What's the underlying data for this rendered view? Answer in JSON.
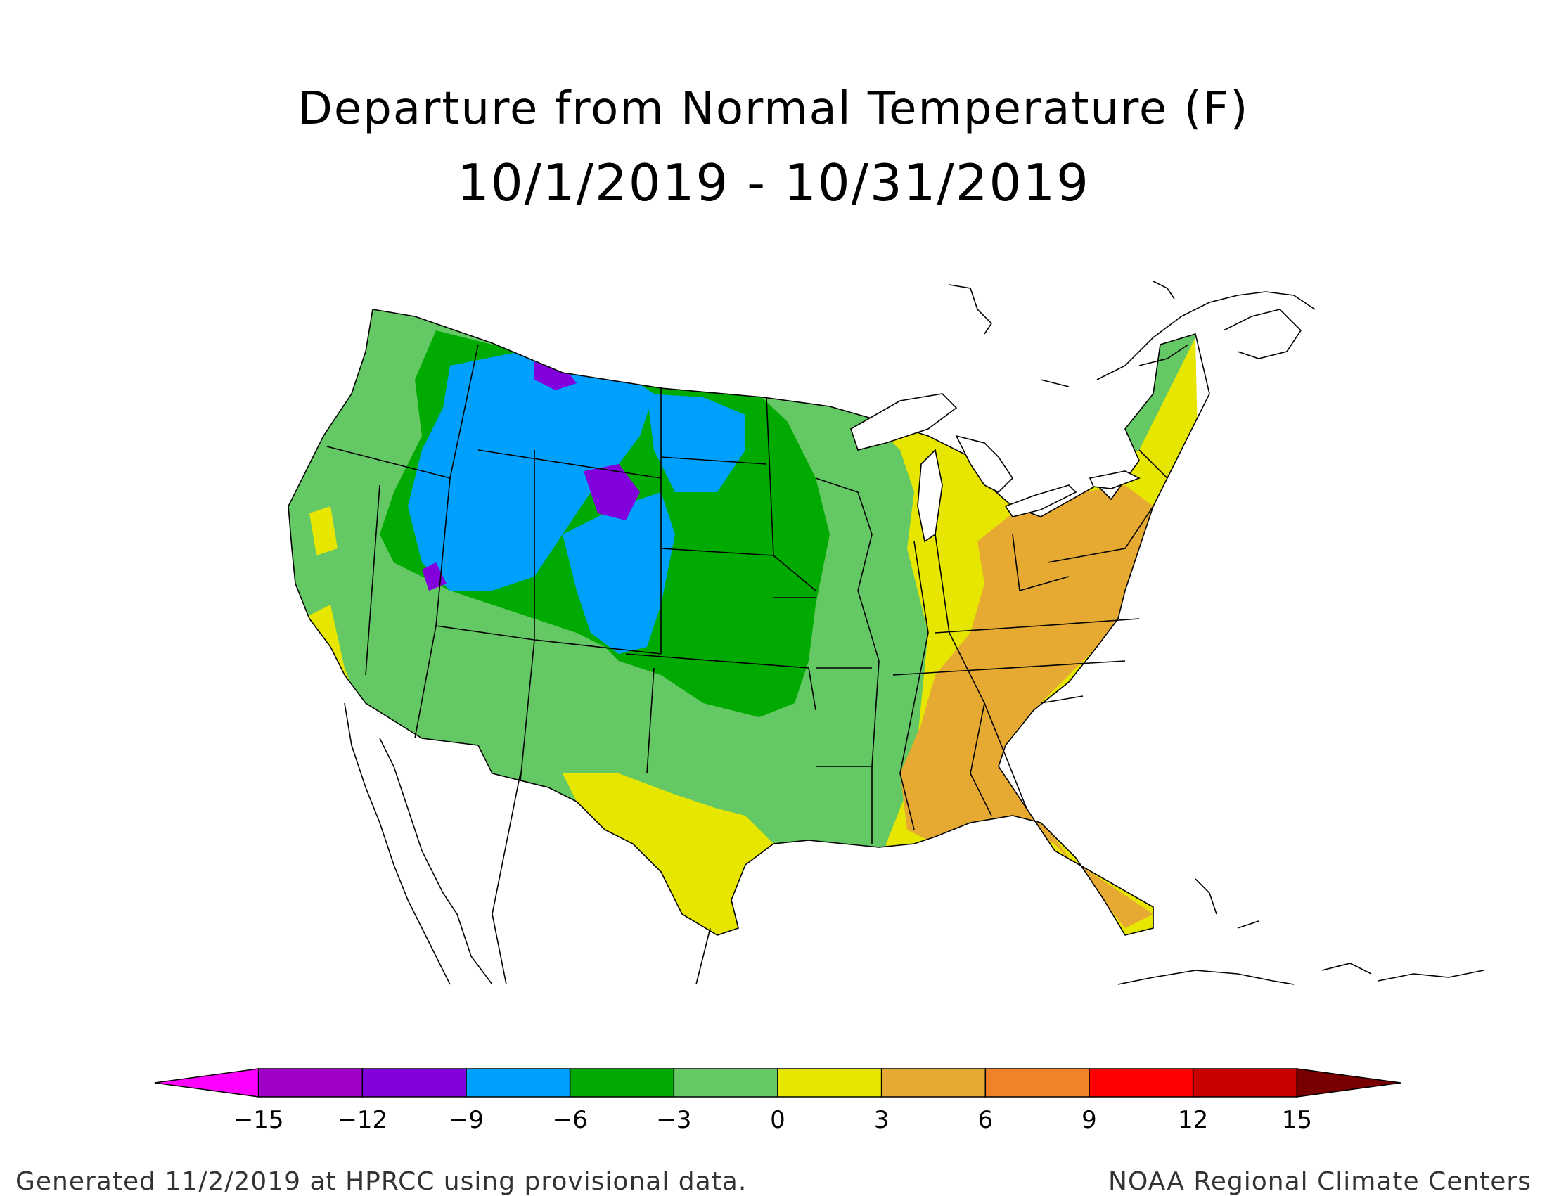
{
  "title": {
    "line1": "Departure from Normal Temperature (F)",
    "line2": "10/1/2019 - 10/31/2019"
  },
  "legend": {
    "colors": [
      "#ff00ff",
      "#a000c8",
      "#8200dc",
      "#00a0ff",
      "#00aa00",
      "#64c864",
      "#e6e600",
      "#e6aa32",
      "#f08228",
      "#ff0000",
      "#c80000",
      "#780000"
    ],
    "labels": [
      "-15",
      "-12",
      "-9",
      "-6",
      "-3",
      "0",
      "3",
      "6",
      "9",
      "12",
      "15"
    ]
  },
  "footer": {
    "left": "Generated 11/2/2019 at HPRCC using provisional data.",
    "right": "NOAA Regional Climate Centers"
  }
}
